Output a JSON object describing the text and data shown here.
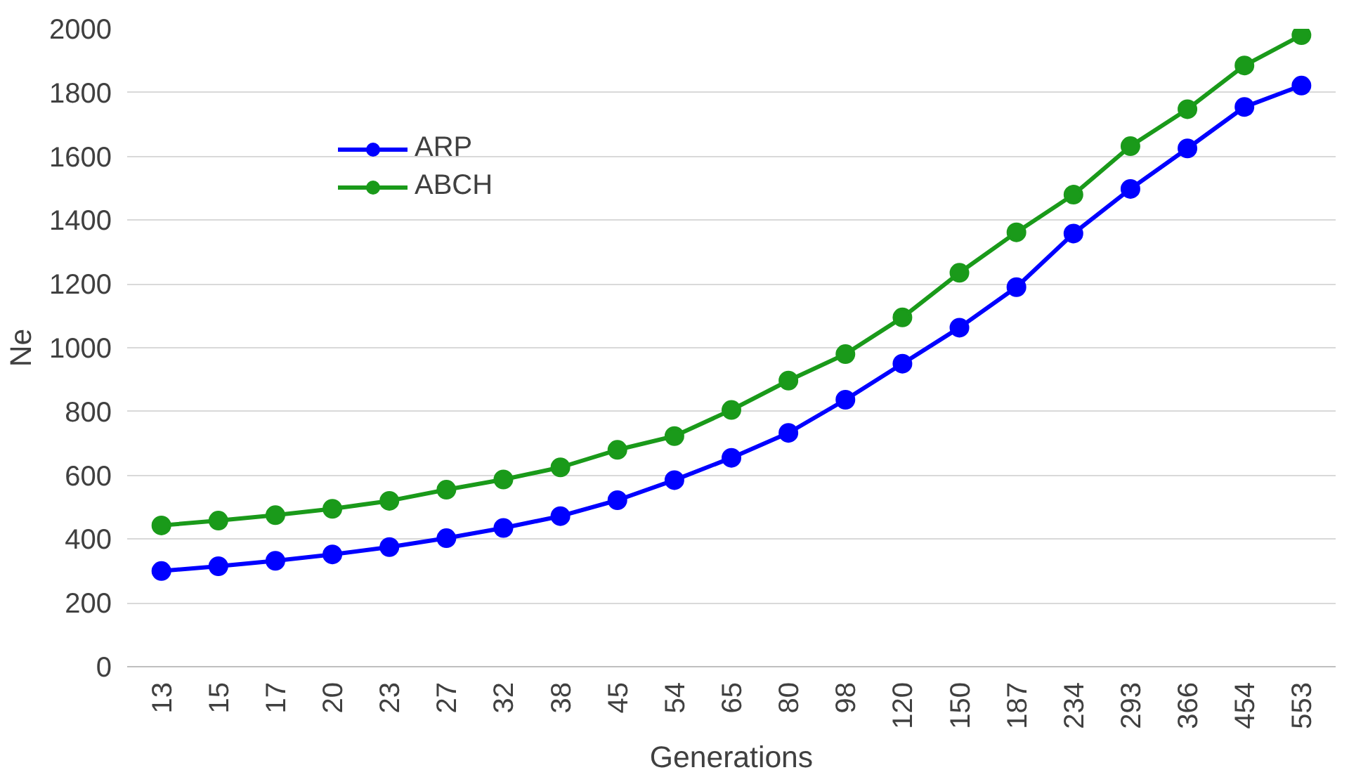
{
  "chart_data": {
    "type": "line",
    "xlabel": "Generations",
    "ylabel": "Ne",
    "categories": [
      "13",
      "15",
      "17",
      "20",
      "23",
      "27",
      "32",
      "38",
      "45",
      "54",
      "65",
      "80",
      "98",
      "120",
      "150",
      "187",
      "234",
      "293",
      "366",
      "454",
      "553"
    ],
    "series": [
      {
        "name": "ARP",
        "color": "#0000ff",
        "values": [
          300,
          315,
          332,
          352,
          375,
          403,
          435,
          472,
          522,
          585,
          655,
          733,
          837,
          950,
          1063,
          1190,
          1358,
          1498,
          1625,
          1755,
          1822
        ]
      },
      {
        "name": "ABCH",
        "color": "#1a9a1a",
        "values": [
          443,
          458,
          475,
          495,
          520,
          555,
          587,
          625,
          680,
          723,
          805,
          897,
          980,
          1095,
          1235,
          1362,
          1480,
          1632,
          1748,
          1885,
          1980
        ]
      }
    ],
    "ylim": [
      0,
      2000
    ],
    "yticks": [
      0,
      200,
      400,
      600,
      800,
      1000,
      1200,
      1400,
      1600,
      1800,
      2000
    ],
    "grid": "y",
    "legend": "top left",
    "marker": "circle",
    "line_style": "solid"
  }
}
